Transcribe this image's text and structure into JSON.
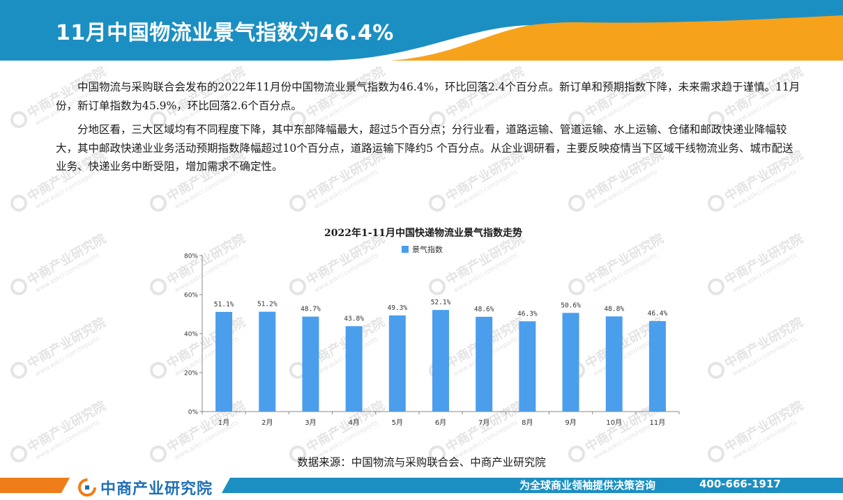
{
  "header": {
    "title": "11月中国物流业景气指数为46.4%"
  },
  "paragraphs": [
    "中国物流与采购联合会发布的2022年11月份中国物流业景气指数为46.4%，环比回落2.4个百分点。新订单和预期指数下降，未来需求趋于谨慎。11月份，新订单指数为45.9%，环比回落2.6个百分点。",
    "分地区看，三大区域均有不同程度下降，其中东部降幅最大，超过5个百分点；分行业看，道路运输、管道运输、水上运输、仓储和邮政快递业降幅较大，其中邮政快递业业务活动预期指数降幅超过10个百分点，道路运输下降约5 个百分点。从企业调研看，主要反映疫情当下区域干线物流业务、城市配送业务、快递业务中断受阻，增加需求不确定性。"
  ],
  "chart_data": {
    "type": "bar",
    "title": "2022年1-11月中国快递物流业景气指数走势",
    "categories": [
      "1月",
      "2月",
      "3月",
      "4月",
      "5月",
      "6月",
      "7月",
      "8月",
      "9月",
      "10月",
      "11月"
    ],
    "series": [
      {
        "name": "景气指数",
        "values": [
          51.1,
          51.2,
          48.7,
          43.8,
          49.3,
          52.1,
          48.6,
          46.3,
          50.6,
          48.8,
          46.4
        ]
      }
    ],
    "data_labels": [
      "51.1%",
      "51.2%",
      "48.7%",
      "43.8%",
      "49.3%",
      "52.1%",
      "48.6%",
      "46.3%",
      "50.6%",
      "48.8%",
      "46.4%"
    ],
    "yticks": [
      0,
      20,
      40,
      60,
      80
    ],
    "ytick_labels": [
      "0%",
      "20%",
      "40%",
      "60%",
      "80%"
    ],
    "ylim": [
      0,
      80
    ],
    "legend_position": "top",
    "bar_color": "#4a9eec"
  },
  "source": "数据来源：中国物流与采购联合会、中商产业研究院",
  "footer": {
    "brand": "中商产业研究院",
    "slogan": "为全球商业领袖提供决策咨询",
    "phone": "400-666-1917"
  },
  "watermark": {
    "text": "中商产业研究院",
    "subtext": "www.askci.com/reports"
  },
  "colors": {
    "header_blue": "#1c8fc2",
    "header_orange": "#f7a21b",
    "footer_orange": "#ef7d19",
    "footer_blue": "#1c8fc2"
  },
  "icons": {
    "brand_logo": "askci-logo-icon"
  }
}
